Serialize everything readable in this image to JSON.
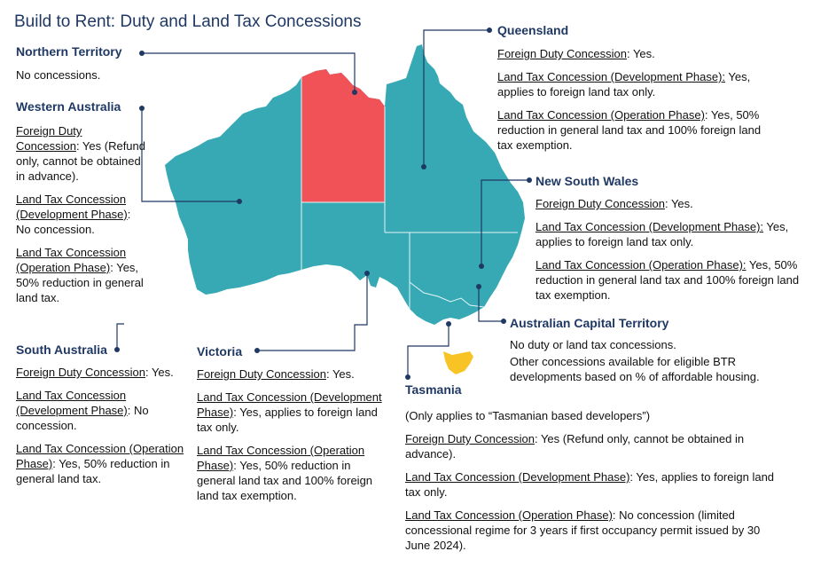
{
  "title": "Build to Rent: Duty and Land Tax Concessions",
  "colors": {
    "map_teal": "#36a9b4",
    "nt_red": "#f05258",
    "tas_yellow": "#f7c325",
    "heading_navy": "#1f3864"
  },
  "map_labels": [
    {
      "region": "Northern Territory",
      "no_concession": true
    },
    {
      "region": "Tasmania",
      "concession_limited": true
    }
  ],
  "regions": {
    "nt": {
      "name": "Northern Territory",
      "line1": "No concessions."
    },
    "wa": {
      "name": "Western Australia",
      "foreign_duty_label": "Foreign Duty Concession",
      "foreign_duty_text": ": Yes (Refund only, cannot be obtained in advance).",
      "dev_label": "Land Tax Concession (Development Phase)",
      "dev_text": ": No concession.",
      "op_label": "Land Tax Concession (Operation Phase)",
      "op_text": ": Yes, 50% reduction in general land tax."
    },
    "qld": {
      "name": "Queensland",
      "foreign_duty_label": "Foreign Duty Concession",
      "foreign_duty_text": ": Yes.",
      "dev_label": "Land Tax Concession (Development Phase):",
      "dev_text": " Yes, applies to foreign land tax only.",
      "op_label": "Land Tax Concession (Operation Phase)",
      "op_text": ": Yes, 50% reduction in general land tax and 100% foreign land tax exemption."
    },
    "nsw": {
      "name": "New South Wales",
      "foreign_duty_label": "Foreign Duty Concession",
      "foreign_duty_text": ": Yes.",
      "dev_label": "Land Tax Concession (Development Phase):",
      "dev_text": " Yes, applies to foreign land tax only.",
      "op_label": "Land Tax Concession (Operation Phase):",
      "op_text": " Yes, 50% reduction in general land tax and 100% foreign land tax exemption."
    },
    "act": {
      "name": "Australian Capital Territory",
      "line1": "No duty or land tax concessions.",
      "line2": "Other concessions available for eligible BTR developments based on % of affordable housing."
    },
    "sa": {
      "name": "South Australia",
      "foreign_duty_label": "Foreign Duty Concession",
      "foreign_duty_text": ": Yes.",
      "dev_label": "Land Tax Concession (Development Phase)",
      "dev_text": ": No concession.",
      "op_label": "Land Tax Concession (Operation Phase)",
      "op_text": ": Yes, 50% reduction in general land tax."
    },
    "vic": {
      "name": "Victoria",
      "foreign_duty_label": "Foreign Duty Concession",
      "foreign_duty_text": ": Yes.",
      "dev_label": "Land Tax Concession (Development Phase)",
      "dev_text": ": Yes, applies to foreign land tax only.",
      "op_label": "Land Tax Concession (Operation Phase)",
      "op_text": ": Yes, 50% reduction in general land tax and 100% foreign land tax exemption."
    },
    "tas": {
      "name": "Tasmania",
      "note": "(Only applies to “Tasmanian based developers”)",
      "foreign_duty_label": "Foreign Duty Concession",
      "foreign_duty_text": ": Yes (Refund only, cannot be obtained in advance).",
      "dev_label": "Land Tax Concession (Development Phase)",
      "dev_text": ": Yes, applies to foreign land tax only.",
      "op_label": "Land Tax Concession (Operation Phase)",
      "op_text": ": No concession (limited concessional regime for 3 years if first occupancy permit issued by 30 June 2024)."
    }
  }
}
